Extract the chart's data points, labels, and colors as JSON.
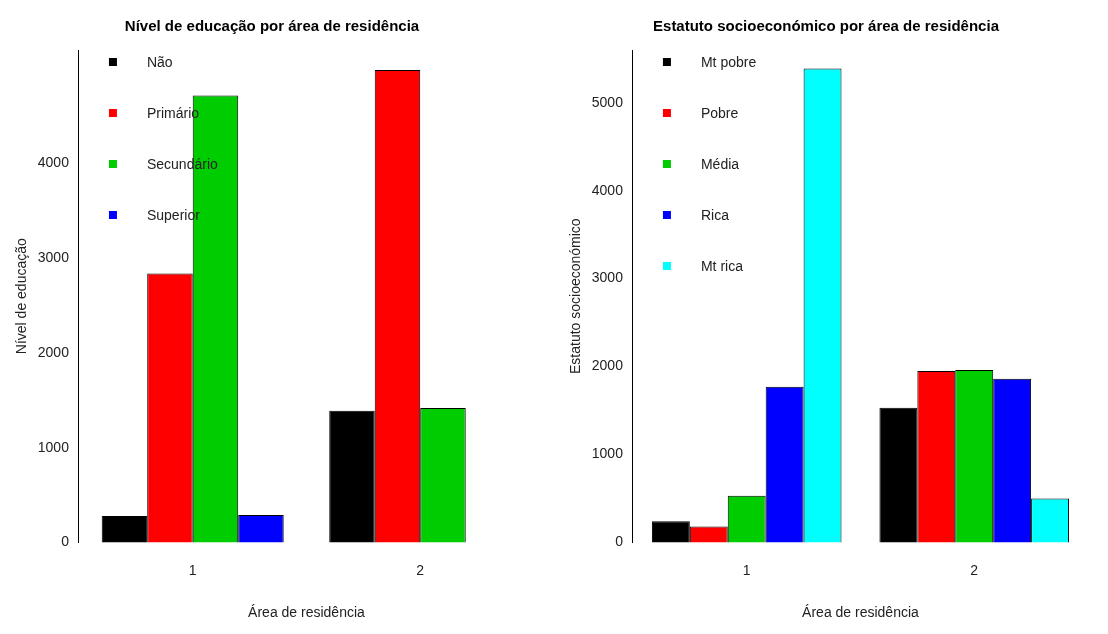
{
  "chart_data": [
    {
      "type": "bar",
      "title": "Nível de educação por área de residência",
      "xlabel": "Área de residência",
      "ylabel": "Nível de educação",
      "categories": [
        "1",
        "2"
      ],
      "series": [
        {
          "name": "Não",
          "color": "#000000",
          "values": [
            280,
            1390
          ]
        },
        {
          "name": "Primário",
          "color": "#ff0000",
          "values": [
            2840,
            4990
          ]
        },
        {
          "name": "Secundário",
          "color": "#00cd00",
          "values": [
            4720,
            1420
          ]
        },
        {
          "name": "Superior",
          "color": "#0000ff",
          "values": [
            290,
            0
          ]
        }
      ],
      "ylim": [
        0,
        5200
      ],
      "yticks": [
        0,
        1000,
        2000,
        3000,
        4000
      ],
      "grid": false,
      "legend": "top left"
    },
    {
      "type": "bar",
      "title": "Estatuto socioeconómico por área de residência",
      "xlabel": "Área de residência",
      "ylabel": "Estatuto socioeconómico",
      "categories": [
        "1",
        "2"
      ],
      "series": [
        {
          "name": "Mt pobre",
          "color": "#000000",
          "values": [
            240,
            1530
          ]
        },
        {
          "name": "Pobre",
          "color": "#ff0000",
          "values": [
            180,
            1950
          ]
        },
        {
          "name": "Média",
          "color": "#00cd00",
          "values": [
            530,
            1960
          ]
        },
        {
          "name": "Rica",
          "color": "#0000ff",
          "values": [
            1770,
            1860
          ]
        },
        {
          "name": "Mt rica",
          "color": "#00ffff",
          "values": [
            5390,
            500
          ]
        }
      ],
      "ylim": [
        0,
        5600
      ],
      "yticks": [
        0,
        1000,
        2000,
        3000,
        4000,
        5000
      ],
      "grid": false,
      "legend": "top left"
    }
  ]
}
